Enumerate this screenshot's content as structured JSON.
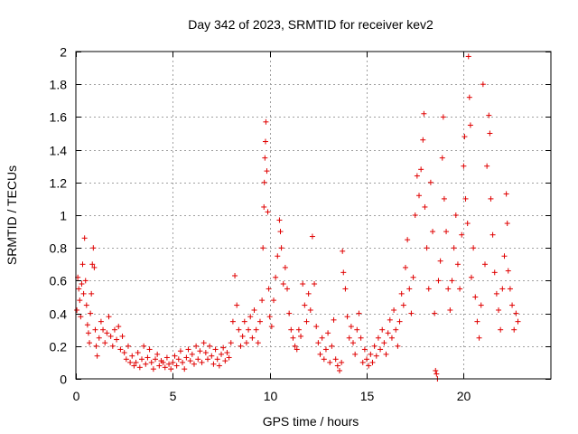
{
  "chart_data": {
    "type": "scatter",
    "title": "Day 342 of 2023, SRMTID for receiver kev2",
    "xlabel": "GPS time / hours",
    "ylabel": "SRMTID / TECUs",
    "xlim": [
      0,
      24.5
    ],
    "ylim": [
      0,
      2
    ],
    "x_ticks": [
      0,
      5,
      10,
      15,
      20
    ],
    "x_tick_labels": [
      "0",
      "5",
      "10",
      "15",
      "20"
    ],
    "y_ticks": [
      0,
      0.2,
      0.4,
      0.6,
      0.8,
      1,
      1.2,
      1.4,
      1.6,
      1.8,
      2
    ],
    "y_tick_labels": [
      "0",
      "0.2",
      "0.4",
      "0.6",
      "0.8",
      "1",
      "1.2",
      "1.4",
      "1.6",
      "1.8",
      "2"
    ],
    "grid": true,
    "marker": "+",
    "color": "#e00000",
    "series": [
      {
        "name": "SRMTID",
        "points": [
          [
            0.05,
            0.42
          ],
          [
            0.1,
            0.62
          ],
          [
            0.15,
            0.55
          ],
          [
            0.2,
            0.48
          ],
          [
            0.25,
            0.38
          ],
          [
            0.3,
            0.58
          ],
          [
            0.35,
            0.7
          ],
          [
            0.4,
            0.52
          ],
          [
            0.45,
            0.86
          ],
          [
            0.5,
            0.6
          ],
          [
            0.55,
            0.45
          ],
          [
            0.6,
            0.33
          ],
          [
            0.65,
            0.28
          ],
          [
            0.7,
            0.22
          ],
          [
            0.75,
            0.4
          ],
          [
            0.8,
            0.52
          ],
          [
            0.85,
            0.7
          ],
          [
            0.9,
            0.8
          ],
          [
            0.95,
            0.68
          ],
          [
            1.0,
            0.3
          ],
          [
            1.05,
            0.2
          ],
          [
            1.1,
            0.14
          ],
          [
            1.2,
            0.25
          ],
          [
            1.3,
            0.35
          ],
          [
            1.4,
            0.3
          ],
          [
            1.5,
            0.22
          ],
          [
            1.6,
            0.28
          ],
          [
            1.7,
            0.38
          ],
          [
            1.8,
            0.26
          ],
          [
            1.9,
            0.2
          ],
          [
            2.0,
            0.3
          ],
          [
            2.1,
            0.24
          ],
          [
            2.2,
            0.32
          ],
          [
            2.3,
            0.18
          ],
          [
            2.4,
            0.26
          ],
          [
            2.5,
            0.16
          ],
          [
            2.6,
            0.12
          ],
          [
            2.7,
            0.2
          ],
          [
            2.8,
            0.1
          ],
          [
            2.9,
            0.14
          ],
          [
            3.0,
            0.08
          ],
          [
            3.1,
            0.1
          ],
          [
            3.2,
            0.16
          ],
          [
            3.3,
            0.07
          ],
          [
            3.4,
            0.12
          ],
          [
            3.5,
            0.2
          ],
          [
            3.6,
            0.09
          ],
          [
            3.7,
            0.13
          ],
          [
            3.8,
            0.18
          ],
          [
            3.9,
            0.1
          ],
          [
            4.0,
            0.06
          ],
          [
            4.1,
            0.12
          ],
          [
            4.2,
            0.15
          ],
          [
            4.3,
            0.08
          ],
          [
            4.4,
            0.11
          ],
          [
            4.5,
            0.1
          ],
          [
            4.6,
            0.07
          ],
          [
            4.7,
            0.13
          ],
          [
            4.8,
            0.09
          ],
          [
            4.9,
            0.06
          ],
          [
            5.0,
            0.1
          ],
          [
            5.1,
            0.14
          ],
          [
            5.2,
            0.08
          ],
          [
            5.3,
            0.12
          ],
          [
            5.4,
            0.17
          ],
          [
            5.5,
            0.1
          ],
          [
            5.6,
            0.06
          ],
          [
            5.7,
            0.13
          ],
          [
            5.8,
            0.18
          ],
          [
            5.9,
            0.11
          ],
          [
            6.0,
            0.15
          ],
          [
            6.1,
            0.09
          ],
          [
            6.2,
            0.2
          ],
          [
            6.3,
            0.12
          ],
          [
            6.4,
            0.17
          ],
          [
            6.5,
            0.1
          ],
          [
            6.6,
            0.22
          ],
          [
            6.7,
            0.16
          ],
          [
            6.8,
            0.12
          ],
          [
            6.9,
            0.2
          ],
          [
            7.0,
            0.14
          ],
          [
            7.1,
            0.09
          ],
          [
            7.2,
            0.18
          ],
          [
            7.3,
            0.12
          ],
          [
            7.4,
            0.08
          ],
          [
            7.5,
            0.15
          ],
          [
            7.6,
            0.19
          ],
          [
            7.7,
            0.11
          ],
          [
            7.8,
            0.16
          ],
          [
            7.9,
            0.13
          ],
          [
            8.0,
            0.22
          ],
          [
            8.1,
            0.35
          ],
          [
            8.2,
            0.63
          ],
          [
            8.3,
            0.45
          ],
          [
            8.4,
            0.3
          ],
          [
            8.5,
            0.2
          ],
          [
            8.6,
            0.26
          ],
          [
            8.7,
            0.35
          ],
          [
            8.8,
            0.22
          ],
          [
            8.9,
            0.3
          ],
          [
            9.0,
            0.38
          ],
          [
            9.1,
            0.25
          ],
          [
            9.2,
            0.42
          ],
          [
            9.3,
            0.3
          ],
          [
            9.4,
            0.22
          ],
          [
            9.5,
            0.35
          ],
          [
            9.6,
            0.48
          ],
          [
            9.65,
            0.8
          ],
          [
            9.7,
            1.05
          ],
          [
            9.72,
            1.2
          ],
          [
            9.75,
            1.35
          ],
          [
            9.78,
            1.45
          ],
          [
            9.8,
            1.57
          ],
          [
            9.85,
            1.27
          ],
          [
            9.9,
            1.02
          ],
          [
            9.95,
            0.55
          ],
          [
            10.0,
            0.38
          ],
          [
            10.1,
            0.32
          ],
          [
            10.2,
            0.48
          ],
          [
            10.3,
            0.62
          ],
          [
            10.4,
            0.75
          ],
          [
            10.5,
            0.97
          ],
          [
            10.55,
            0.9
          ],
          [
            10.6,
            0.8
          ],
          [
            10.7,
            0.58
          ],
          [
            10.8,
            0.68
          ],
          [
            10.9,
            0.55
          ],
          [
            11.0,
            0.4
          ],
          [
            11.1,
            0.3
          ],
          [
            11.2,
            0.25
          ],
          [
            11.3,
            0.2
          ],
          [
            11.4,
            0.18
          ],
          [
            11.5,
            0.3
          ],
          [
            11.6,
            0.26
          ],
          [
            11.7,
            0.58
          ],
          [
            11.8,
            0.45
          ],
          [
            11.9,
            0.35
          ],
          [
            12.0,
            0.52
          ],
          [
            12.1,
            0.42
          ],
          [
            12.2,
            0.87
          ],
          [
            12.3,
            0.58
          ],
          [
            12.4,
            0.32
          ],
          [
            12.5,
            0.22
          ],
          [
            12.6,
            0.15
          ],
          [
            12.7,
            0.25
          ],
          [
            12.8,
            0.12
          ],
          [
            12.9,
            0.18
          ],
          [
            13.0,
            0.28
          ],
          [
            13.1,
            0.1
          ],
          [
            13.2,
            0.2
          ],
          [
            13.3,
            0.36
          ],
          [
            13.4,
            0.12
          ],
          [
            13.5,
            0.08
          ],
          [
            13.6,
            0.05
          ],
          [
            13.7,
            0.1
          ],
          [
            13.75,
            0.78
          ],
          [
            13.8,
            0.65
          ],
          [
            13.9,
            0.55
          ],
          [
            14.0,
            0.38
          ],
          [
            14.1,
            0.25
          ],
          [
            14.2,
            0.32
          ],
          [
            14.3,
            0.22
          ],
          [
            14.4,
            0.15
          ],
          [
            14.5,
            0.3
          ],
          [
            14.6,
            0.4
          ],
          [
            14.7,
            0.25
          ],
          [
            14.8,
            0.1
          ],
          [
            14.9,
            0.18
          ],
          [
            15.0,
            0.12
          ],
          [
            15.1,
            0.08
          ],
          [
            15.2,
            0.15
          ],
          [
            15.3,
            0.1
          ],
          [
            15.4,
            0.2
          ],
          [
            15.5,
            0.14
          ],
          [
            15.6,
            0.25
          ],
          [
            15.7,
            0.18
          ],
          [
            15.8,
            0.3
          ],
          [
            15.9,
            0.22
          ],
          [
            16.0,
            0.15
          ],
          [
            16.1,
            0.28
          ],
          [
            16.2,
            0.36
          ],
          [
            16.3,
            0.25
          ],
          [
            16.4,
            0.42
          ],
          [
            16.5,
            0.3
          ],
          [
            16.6,
            0.2
          ],
          [
            16.7,
            0.35
          ],
          [
            16.8,
            0.52
          ],
          [
            16.9,
            0.45
          ],
          [
            17.0,
            0.68
          ],
          [
            17.1,
            0.85
          ],
          [
            17.2,
            0.55
          ],
          [
            17.3,
            0.4
          ],
          [
            17.4,
            0.62
          ],
          [
            17.5,
            1.0
          ],
          [
            17.6,
            1.24
          ],
          [
            17.7,
            1.12
          ],
          [
            17.8,
            1.28
          ],
          [
            17.9,
            1.46
          ],
          [
            17.95,
            1.62
          ],
          [
            18.0,
            1.05
          ],
          [
            18.1,
            0.8
          ],
          [
            18.2,
            0.55
          ],
          [
            18.3,
            1.2
          ],
          [
            18.4,
            0.9
          ],
          [
            18.5,
            0.4
          ],
          [
            18.55,
            0.05
          ],
          [
            18.6,
            0.03
          ],
          [
            18.65,
            0.0
          ],
          [
            18.7,
            0.6
          ],
          [
            18.8,
            0.72
          ],
          [
            18.9,
            1.35
          ],
          [
            18.95,
            1.6
          ],
          [
            19.0,
            1.1
          ],
          [
            19.1,
            0.9
          ],
          [
            19.2,
            0.55
          ],
          [
            19.3,
            0.42
          ],
          [
            19.4,
            0.6
          ],
          [
            19.5,
            0.8
          ],
          [
            19.6,
            1.0
          ],
          [
            19.7,
            0.7
          ],
          [
            19.8,
            0.55
          ],
          [
            19.9,
            0.88
          ],
          [
            20.0,
            1.3
          ],
          [
            20.05,
            1.48
          ],
          [
            20.1,
            1.1
          ],
          [
            20.2,
            0.95
          ],
          [
            20.25,
            1.97
          ],
          [
            20.3,
            1.72
          ],
          [
            20.35,
            1.55
          ],
          [
            20.4,
            0.62
          ],
          [
            20.5,
            0.8
          ],
          [
            20.6,
            0.5
          ],
          [
            20.7,
            0.35
          ],
          [
            20.8,
            0.25
          ],
          [
            20.9,
            0.45
          ],
          [
            21.0,
            1.8
          ],
          [
            21.1,
            0.7
          ],
          [
            21.2,
            1.3
          ],
          [
            21.3,
            1.61
          ],
          [
            21.35,
            1.5
          ],
          [
            21.4,
            1.1
          ],
          [
            21.5,
            0.88
          ],
          [
            21.6,
            0.65
          ],
          [
            21.7,
            0.52
          ],
          [
            21.8,
            0.42
          ],
          [
            21.9,
            0.3
          ],
          [
            22.0,
            0.55
          ],
          [
            22.1,
            0.75
          ],
          [
            22.2,
            1.13
          ],
          [
            22.25,
            0.95
          ],
          [
            22.3,
            0.66
          ],
          [
            22.4,
            0.55
          ],
          [
            22.5,
            0.45
          ],
          [
            22.6,
            0.3
          ],
          [
            22.7,
            0.4
          ],
          [
            22.8,
            0.35
          ]
        ]
      }
    ]
  }
}
